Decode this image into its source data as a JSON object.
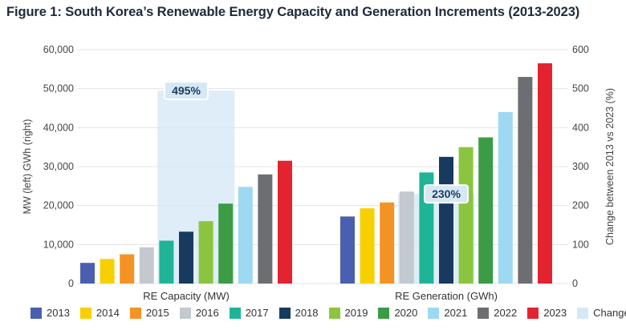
{
  "title": "Figure 1: South Korea’s Renewable Energy Capacity and Generation Increments (2013-2023)",
  "chart_data": {
    "type": "bar",
    "title": "Figure 1: South Korea’s Renewable Energy Capacity and Generation Increments (2013-2023)",
    "ylabel": "MW (left) GWh (right)",
    "y2label": "Change between 2013 vs 2023 (%)",
    "ylim": [
      0,
      60000
    ],
    "y2lim": [
      0,
      600
    ],
    "yticks": [
      "0",
      "10,000",
      "20,000",
      "30,000",
      "40,000",
      "50,000",
      "60,000"
    ],
    "y2ticks": [
      "0",
      "100",
      "200",
      "300",
      "400",
      "500",
      "600"
    ],
    "grid": true,
    "legend_position": "bottom",
    "categories": [
      "RE Capacity (MW)",
      "RE Generation (GWh)"
    ],
    "series": [
      {
        "name": "2013",
        "color": "#4a5fb0",
        "values": [
          5300,
          17200
        ]
      },
      {
        "name": "2014",
        "color": "#f8d000",
        "values": [
          6300,
          19300
        ]
      },
      {
        "name": "2015",
        "color": "#f39324",
        "values": [
          7500,
          20800
        ]
      },
      {
        "name": "2016",
        "color": "#c4c8cf",
        "values": [
          9300,
          23600
        ]
      },
      {
        "name": "2017",
        "color": "#1fb497",
        "values": [
          11000,
          28500
        ]
      },
      {
        "name": "2018",
        "color": "#173a5e",
        "values": [
          13300,
          32500
        ]
      },
      {
        "name": "2019",
        "color": "#8bc53f",
        "values": [
          16000,
          35000
        ]
      },
      {
        "name": "2020",
        "color": "#3b9c45",
        "values": [
          20500,
          37500
        ]
      },
      {
        "name": "2021",
        "color": "#9dd9f3",
        "values": [
          24800,
          44000
        ]
      },
      {
        "name": "2022",
        "color": "#6d6e71",
        "values": [
          28000,
          53000
        ]
      },
      {
        "name": "2023",
        "color": "#e3232f",
        "values": [
          31500,
          56500
        ]
      }
    ],
    "change": {
      "name": "Change (%)",
      "color": "#d6e8f5",
      "values": [
        495,
        230
      ],
      "labels": [
        "495%",
        "230%"
      ]
    }
  }
}
